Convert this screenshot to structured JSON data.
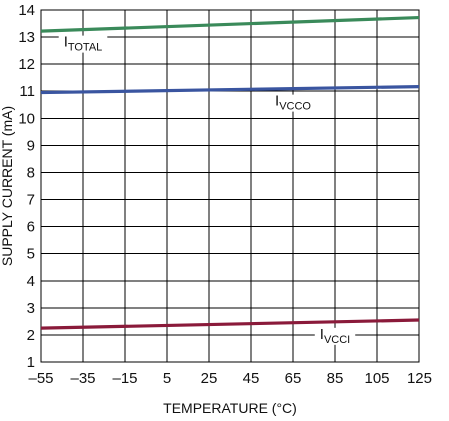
{
  "chart_data": {
    "type": "line",
    "xlabel": "TEMPERATURE (°C)",
    "ylabel": "SUPPLY CURRENT (mA)",
    "xlim": [
      -55,
      125
    ],
    "ylim": [
      1,
      14
    ],
    "grid": true,
    "x_ticks": [
      -55,
      -35,
      -15,
      5,
      25,
      45,
      65,
      85,
      105,
      125
    ],
    "y_ticks": [
      1,
      2,
      3,
      4,
      5,
      6,
      7,
      8,
      9,
      10,
      11,
      12,
      13,
      14
    ],
    "x_tick_labels": [
      "–55",
      "–35",
      "–15",
      "5",
      "25",
      "45",
      "65",
      "85",
      "105",
      "125"
    ],
    "y_tick_labels": [
      "1",
      "2",
      "3",
      "4",
      "5",
      "6",
      "7",
      "8",
      "9",
      "10",
      "11",
      "12",
      "13",
      "14"
    ],
    "series": [
      {
        "name": "I",
        "subscript": "TOTAL",
        "color": "#3a8a5a",
        "x": [
          -55,
          125
        ],
        "y": [
          13.22,
          13.72
        ],
        "label_x": -35
      },
      {
        "name": "I",
        "subscript": "VCCO",
        "color": "#3a55a0",
        "x": [
          -55,
          125
        ],
        "y": [
          10.95,
          11.17
        ],
        "label_x": 65
      },
      {
        "name": "I",
        "subscript": "VCCI",
        "color": "#8a1a3a",
        "x": [
          -55,
          125
        ],
        "y": [
          2.25,
          2.55
        ],
        "label_x": 85
      }
    ]
  }
}
